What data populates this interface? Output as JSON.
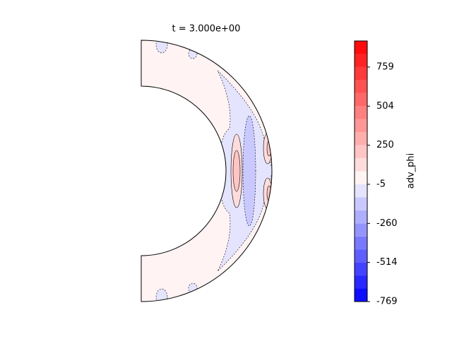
{
  "chart_data": {
    "type": "contour",
    "title": "t = 3.000e+00",
    "colorbar_label": "adv_phi",
    "levels": [
      -769,
      -684,
      -599,
      -514,
      -429,
      -345,
      -260,
      -175,
      -90,
      -5,
      80,
      165,
      250,
      334,
      419,
      504,
      589,
      674,
      759,
      844,
      929
    ],
    "colors": [
      "#0d0dff",
      "#2828ff",
      "#4343ff",
      "#5e5eff",
      "#7979ff",
      "#9494ff",
      "#aeaeff",
      "#c9c9ff",
      "#e4e4ff",
      "#fff3f3",
      "#ffdcdc",
      "#ffc5c5",
      "#ffaeae",
      "#ff9797",
      "#ff8080",
      "#ff6868",
      "#ff5151",
      "#ff3a3a",
      "#ff2323",
      "#ff0c0c"
    ],
    "zlim": [
      -769,
      929
    ],
    "zticks": [
      -769,
      -514,
      -260,
      -5,
      250,
      504,
      759
    ]
  }
}
